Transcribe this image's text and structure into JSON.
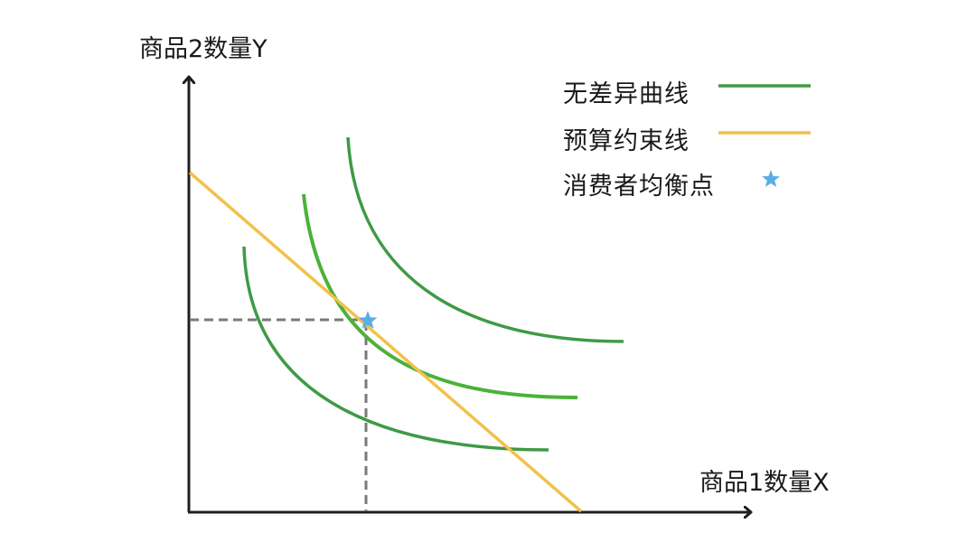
{
  "axes": {
    "y_label": "商品2数量Y",
    "x_label": "商品1数量X"
  },
  "legend": {
    "items": [
      {
        "label": "无差异曲线",
        "symbol": "line",
        "color": "#3f9a45"
      },
      {
        "label": "预算约束线",
        "symbol": "line",
        "color": "#f2c14a"
      },
      {
        "label": "消费者均衡点",
        "symbol": "star",
        "color": "#5aaee6"
      }
    ]
  },
  "colors": {
    "axis": "#1f1f1f",
    "indifference_curve": "#3f9a45",
    "tangent_curve": "#4cb13a",
    "budget_line": "#f2c14a",
    "equilibrium_star": "#5aaee6",
    "guide_lines": "#7a7a7a"
  }
}
